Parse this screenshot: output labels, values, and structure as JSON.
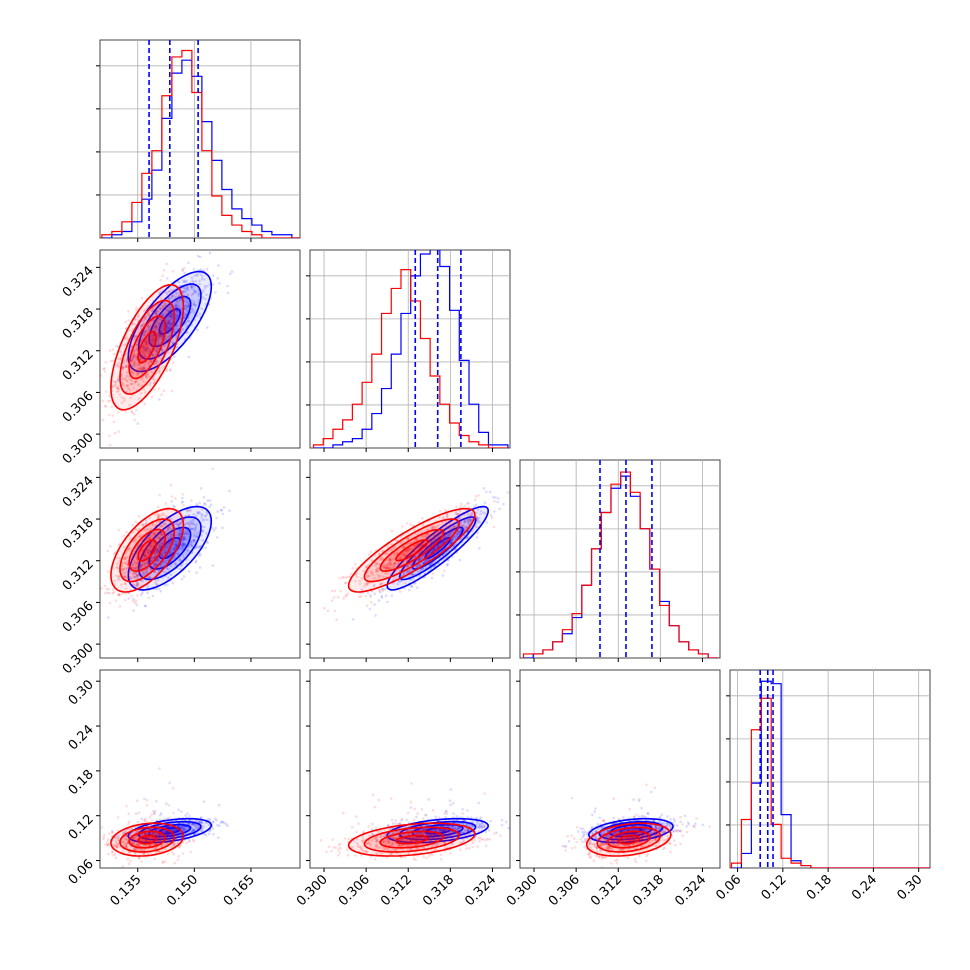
{
  "chart_data": {
    "type": "corner",
    "grid": true,
    "colors": {
      "series_a": "#ff0000",
      "series_b": "#0000ff",
      "quantile_lines": "#0000ff",
      "frame": "#333333",
      "grid": "#b0b0b0"
    },
    "params": [
      {
        "range": [
          0.125,
          0.178
        ],
        "ticks": [
          "0.135",
          "0.150",
          "0.165"
        ],
        "tick_values": [
          0.135,
          0.15,
          0.165
        ]
      },
      {
        "range": [
          0.298,
          0.3265
        ],
        "ticks": [
          "0.300",
          "0.306",
          "0.312",
          "0.318",
          "0.324"
        ],
        "tick_values": [
          0.3,
          0.306,
          0.312,
          0.318,
          0.324
        ]
      },
      {
        "range": [
          0.298,
          0.3265
        ],
        "ticks": [
          "0.300",
          "0.306",
          "0.312",
          "0.318",
          "0.324"
        ],
        "tick_values": [
          0.3,
          0.306,
          0.312,
          0.318,
          0.324
        ]
      },
      {
        "range": [
          0.05,
          0.315
        ],
        "ticks": [
          "0.06",
          "0.12",
          "0.18",
          "0.24",
          "0.30"
        ],
        "tick_values": [
          0.06,
          0.12,
          0.18,
          0.24,
          0.3
        ]
      }
    ],
    "series": [
      {
        "color": "red",
        "mean": [
          0.1375,
          0.3125,
          0.3135,
          0.088
        ],
        "std": [
          0.0048,
          0.0045,
          0.003,
          0.011
        ],
        "corr": [
          [
            1,
            0.65,
            0.6,
            0.2
          ],
          [
            0.65,
            1,
            0.85,
            0.35
          ],
          [
            0.6,
            0.85,
            1,
            0.3
          ],
          [
            0.2,
            0.35,
            0.3,
            1
          ]
        ]
      },
      {
        "color": "blue",
        "mean": [
          0.1435,
          0.3162,
          0.3138,
          0.1
        ],
        "std": [
          0.0055,
          0.0036,
          0.003,
          0.008
        ],
        "corr": [
          [
            1,
            0.7,
            0.65,
            0.45
          ],
          [
            0.7,
            1,
            0.9,
            0.4
          ],
          [
            0.65,
            0.9,
            1,
            0.35
          ],
          [
            0.45,
            0.4,
            0.35,
            1
          ]
        ]
      }
    ],
    "histograms": [
      {
        "red": [
          1,
          2,
          5,
          11,
          20,
          27,
          44,
          56,
          58,
          45,
          27,
          13,
          7,
          4,
          2,
          1,
          0,
          0,
          0,
          0
        ],
        "blue": [
          0,
          1,
          2,
          5,
          12,
          21,
          37,
          51,
          55,
          50,
          36,
          24,
          15,
          9,
          6,
          4,
          2,
          1,
          1,
          0
        ],
        "ymax": 60,
        "x_start": 0.1255,
        "x_end": 0.1785
      },
      {
        "red": [
          1,
          3,
          6,
          9,
          14,
          21,
          30,
          43,
          51,
          57,
          47,
          35,
          23,
          14,
          8,
          4,
          2,
          1,
          0,
          0
        ],
        "blue": [
          0,
          0,
          1,
          2,
          3,
          6,
          11,
          19,
          30,
          43,
          55,
          62,
          65,
          58,
          44,
          28,
          14,
          5,
          1,
          1
        ],
        "ymax": 62,
        "x_start": 0.2985,
        "x_end": 0.3262
      },
      {
        "red": [
          1,
          1,
          2,
          4,
          7,
          11,
          18,
          27,
          36,
          43,
          46,
          41,
          32,
          22,
          13,
          8,
          4,
          2,
          1,
          0
        ],
        "blue": [
          0,
          1,
          2,
          4,
          6,
          10,
          18,
          27,
          36,
          42,
          45,
          40,
          32,
          22,
          14,
          8,
          4,
          2,
          1,
          0
        ],
        "ymax": 48,
        "x_start": 0.2985,
        "x_end": 0.3262
      },
      {
        "red": [
          2,
          20,
          57,
          70,
          18,
          4,
          2,
          1,
          0,
          0,
          0,
          0,
          0,
          0,
          0,
          0,
          0,
          0,
          0,
          0
        ],
        "blue": [
          0,
          6,
          35,
          77,
          76,
          22,
          3,
          1,
          0,
          0,
          0,
          0,
          0,
          0,
          0,
          0,
          0,
          0,
          0,
          0
        ],
        "ymax": 80,
        "x_start": 0.052,
        "x_end": 0.315
      }
    ],
    "quantiles": [
      [
        0.138,
        0.1435,
        0.151
      ],
      [
        0.313,
        0.3162,
        0.3195
      ],
      [
        0.3094,
        0.3131,
        0.3168
      ],
      [
        0.09,
        0.1,
        0.107
      ]
    ]
  }
}
